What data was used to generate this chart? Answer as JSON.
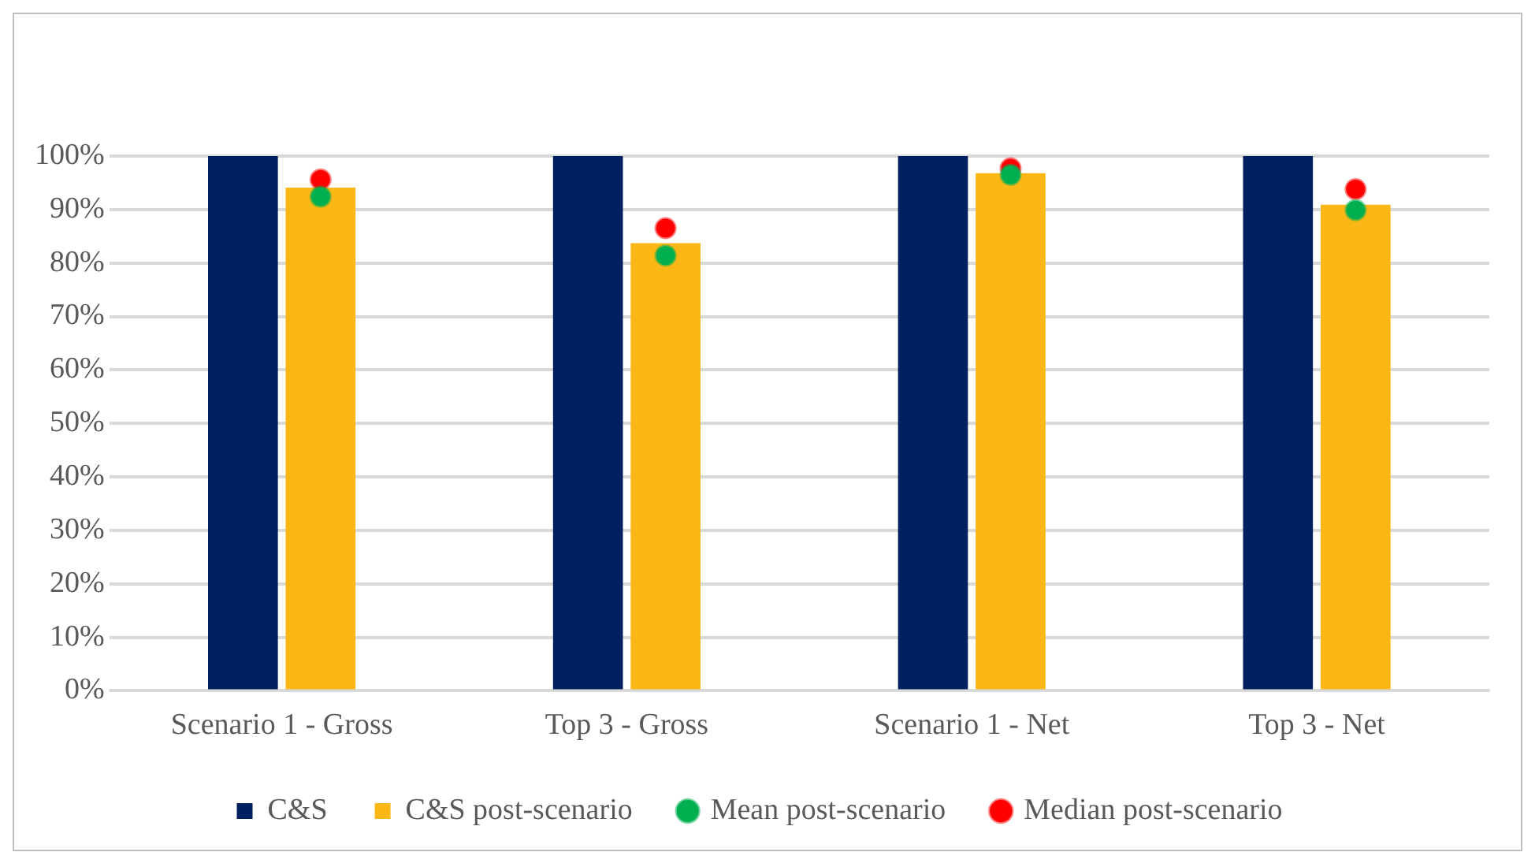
{
  "chart_data": {
    "type": "bar",
    "categories": [
      "Scenario 1 - Gross",
      "Top 3 - Gross",
      "Scenario 1 - Net",
      "Top 3 - Net"
    ],
    "series": [
      {
        "name": "C&S",
        "color": "#002060",
        "values": [
          100,
          100,
          100,
          100
        ]
      },
      {
        "name": "C&S post-scenario",
        "color": "#fbb716",
        "values": [
          94.1,
          83.7,
          96.8,
          90.9
        ]
      },
      {
        "name": "Mean post-scenario",
        "type": "scatter",
        "color": "#00b050",
        "x": [
          "Scenario 1 - Gross",
          "Top 3 - Gross",
          "Scenario 1 - Net",
          "Top 3 - Net"
        ],
        "values": [
          92.4,
          81.4,
          96.5,
          89.9
        ]
      },
      {
        "name": "Median post-scenario",
        "type": "scatter",
        "color": "#ff0000",
        "x": [
          "Scenario 1 - Gross",
          "Top 3 - Gross",
          "Scenario 1 - Net",
          "Top 3 - Net"
        ],
        "values": [
          95.6,
          86.5,
          97.7,
          93.8
        ]
      }
    ],
    "ylim": [
      0,
      100
    ],
    "yticks": [
      {
        "value": 0,
        "label": "0%"
      },
      {
        "value": 10,
        "label": "10%"
      },
      {
        "value": 20,
        "label": "20%"
      },
      {
        "value": 30,
        "label": "30%"
      },
      {
        "value": 40,
        "label": "40%"
      },
      {
        "value": 50,
        "label": "50%"
      },
      {
        "value": 60,
        "label": "60%"
      },
      {
        "value": 70,
        "label": "70%"
      },
      {
        "value": 80,
        "label": "80%"
      },
      {
        "value": 90,
        "label": "90%"
      },
      {
        "value": 100,
        "label": "100%"
      }
    ],
    "grid": "y",
    "legend": "bottom",
    "marker": "circle"
  }
}
